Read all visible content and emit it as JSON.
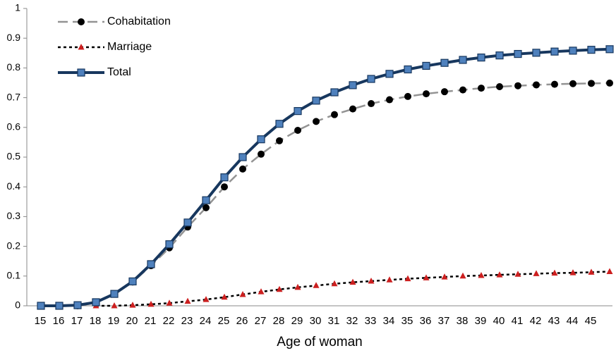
{
  "chart_data": {
    "type": "line",
    "x_label": "Age of woman",
    "categories": [
      "15",
      "16",
      "17",
      "18",
      "19",
      "20",
      "21",
      "22",
      "23",
      "24",
      "25",
      "26",
      "27",
      "28",
      "29",
      "30",
      "31",
      "32",
      "33",
      "34",
      "35",
      "36",
      "37",
      "38",
      "39",
      "40",
      "41",
      "42",
      "43",
      "44",
      "45",
      null
    ],
    "ylim": [
      0,
      1
    ],
    "yticks": [
      0,
      0.1,
      0.2,
      0.3,
      0.4,
      0.5,
      0.6,
      0.7,
      0.8,
      0.9,
      1
    ],
    "legend": "top-left",
    "series": [
      {
        "name": "Cohabitation",
        "color": "#939393",
        "marker_color": "#000000",
        "marker": "circle",
        "dash": "dashed",
        "values": [
          0,
          0,
          0,
          0.01,
          0.04,
          0.08,
          0.135,
          0.195,
          0.265,
          0.33,
          0.4,
          0.46,
          0.51,
          0.555,
          0.59,
          0.62,
          0.643,
          0.662,
          0.68,
          0.693,
          0.704,
          0.713,
          0.72,
          0.726,
          0.732,
          0.737,
          0.74,
          0.743,
          0.745,
          0.747,
          0.748,
          0.749
        ]
      },
      {
        "name": "Marriage",
        "color": "#000000",
        "marker_color": "#cc1f1f",
        "marker": "triangle",
        "dash": "dotted",
        "values": [
          null,
          null,
          null,
          0,
          0,
          0.002,
          0.005,
          0.009,
          0.015,
          0.021,
          0.029,
          0.038,
          0.047,
          0.055,
          0.062,
          0.068,
          0.074,
          0.079,
          0.083,
          0.087,
          0.091,
          0.094,
          0.097,
          0.1,
          0.102,
          0.104,
          0.106,
          0.108,
          0.11,
          0.111,
          0.113,
          0.115
        ]
      },
      {
        "name": "Total",
        "color": "#17375e",
        "marker_color": "#4f81bd",
        "marker": "square",
        "dash": "solid",
        "values": [
          0,
          0,
          0.002,
          0.012,
          0.04,
          0.082,
          0.14,
          0.207,
          0.28,
          0.355,
          0.432,
          0.5,
          0.56,
          0.612,
          0.655,
          0.69,
          0.718,
          0.742,
          0.763,
          0.78,
          0.795,
          0.807,
          0.817,
          0.827,
          0.835,
          0.842,
          0.847,
          0.851,
          0.855,
          0.858,
          0.861,
          0.863
        ]
      }
    ]
  }
}
